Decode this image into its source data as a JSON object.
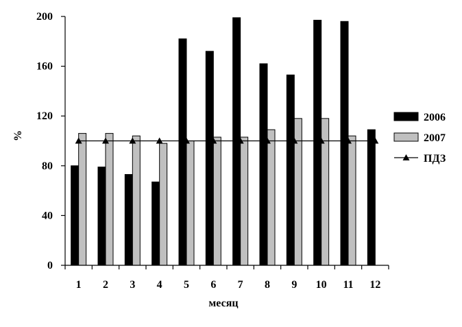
{
  "chart_data": {
    "type": "bar",
    "categories": [
      "1",
      "2",
      "3",
      "4",
      "5",
      "6",
      "7",
      "8",
      "9",
      "10",
      "11",
      "12"
    ],
    "series": [
      {
        "name": "2006",
        "kind": "bar",
        "color": "#000000",
        "values": [
          80,
          79,
          73,
          67,
          182,
          172,
          199,
          162,
          153,
          197,
          196,
          109
        ]
      },
      {
        "name": "2007",
        "kind": "bar",
        "color": "#c0c0c0",
        "values": [
          106,
          106,
          104,
          98,
          100,
          103,
          103,
          109,
          118,
          118,
          104,
          null
        ]
      },
      {
        "name": "ПДЗ",
        "kind": "line",
        "marker": "triangle",
        "color": "#000000",
        "values": [
          100,
          100,
          100,
          100,
          100,
          100,
          100,
          100,
          100,
          100,
          100,
          100
        ]
      }
    ],
    "xlabel": "месяц",
    "ylabel": "%",
    "ylim": [
      0,
      200
    ],
    "yticks": [
      "0",
      "40",
      "80",
      "120",
      "160",
      "200"
    ],
    "grid": false,
    "legend": "right"
  }
}
